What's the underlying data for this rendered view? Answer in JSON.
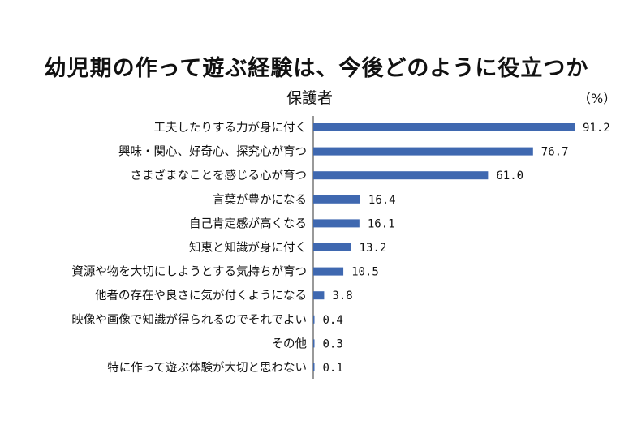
{
  "title": "幼児期の作って遊ぶ経験は、今後どのように役立つか",
  "subtitle": "保護者",
  "unit": "（%）",
  "colors": {
    "bar": "#3f68b0",
    "axis": "#333333",
    "text": "#111111"
  },
  "chart_data": {
    "type": "bar",
    "orientation": "horizontal",
    "title": "幼児期の作って遊ぶ経験は、今後どのように役立つか",
    "subtitle": "保護者",
    "unit": "（%）",
    "xlabel": "",
    "ylabel": "",
    "xlim": [
      0,
      100
    ],
    "grid": false,
    "categories": [
      "工夫したりする力が身に付く",
      "興味・関心、好奇心、探究心が育つ",
      "さまざまなことを感じる心が育つ",
      "言葉が豊かになる",
      "自己肯定感が高くなる",
      "知恵と知識が身に付く",
      "資源や物を大切にしようとする気持ちが育つ",
      "他者の存在や良さに気が付くようになる",
      "映像や画像で知識が得られるのでそれでよい",
      "その他",
      "特に作って遊ぶ体験が大切と思わない"
    ],
    "values": [
      91.2,
      76.7,
      61.0,
      16.4,
      16.1,
      13.2,
      10.5,
      3.8,
      0.4,
      0.3,
      0.1
    ],
    "value_labels": [
      "91.2",
      "76.7",
      "61.0",
      "16.4",
      "16.1",
      "13.2",
      "10.5",
      "3.8",
      "0.4",
      "0.3",
      "0.1"
    ]
  }
}
